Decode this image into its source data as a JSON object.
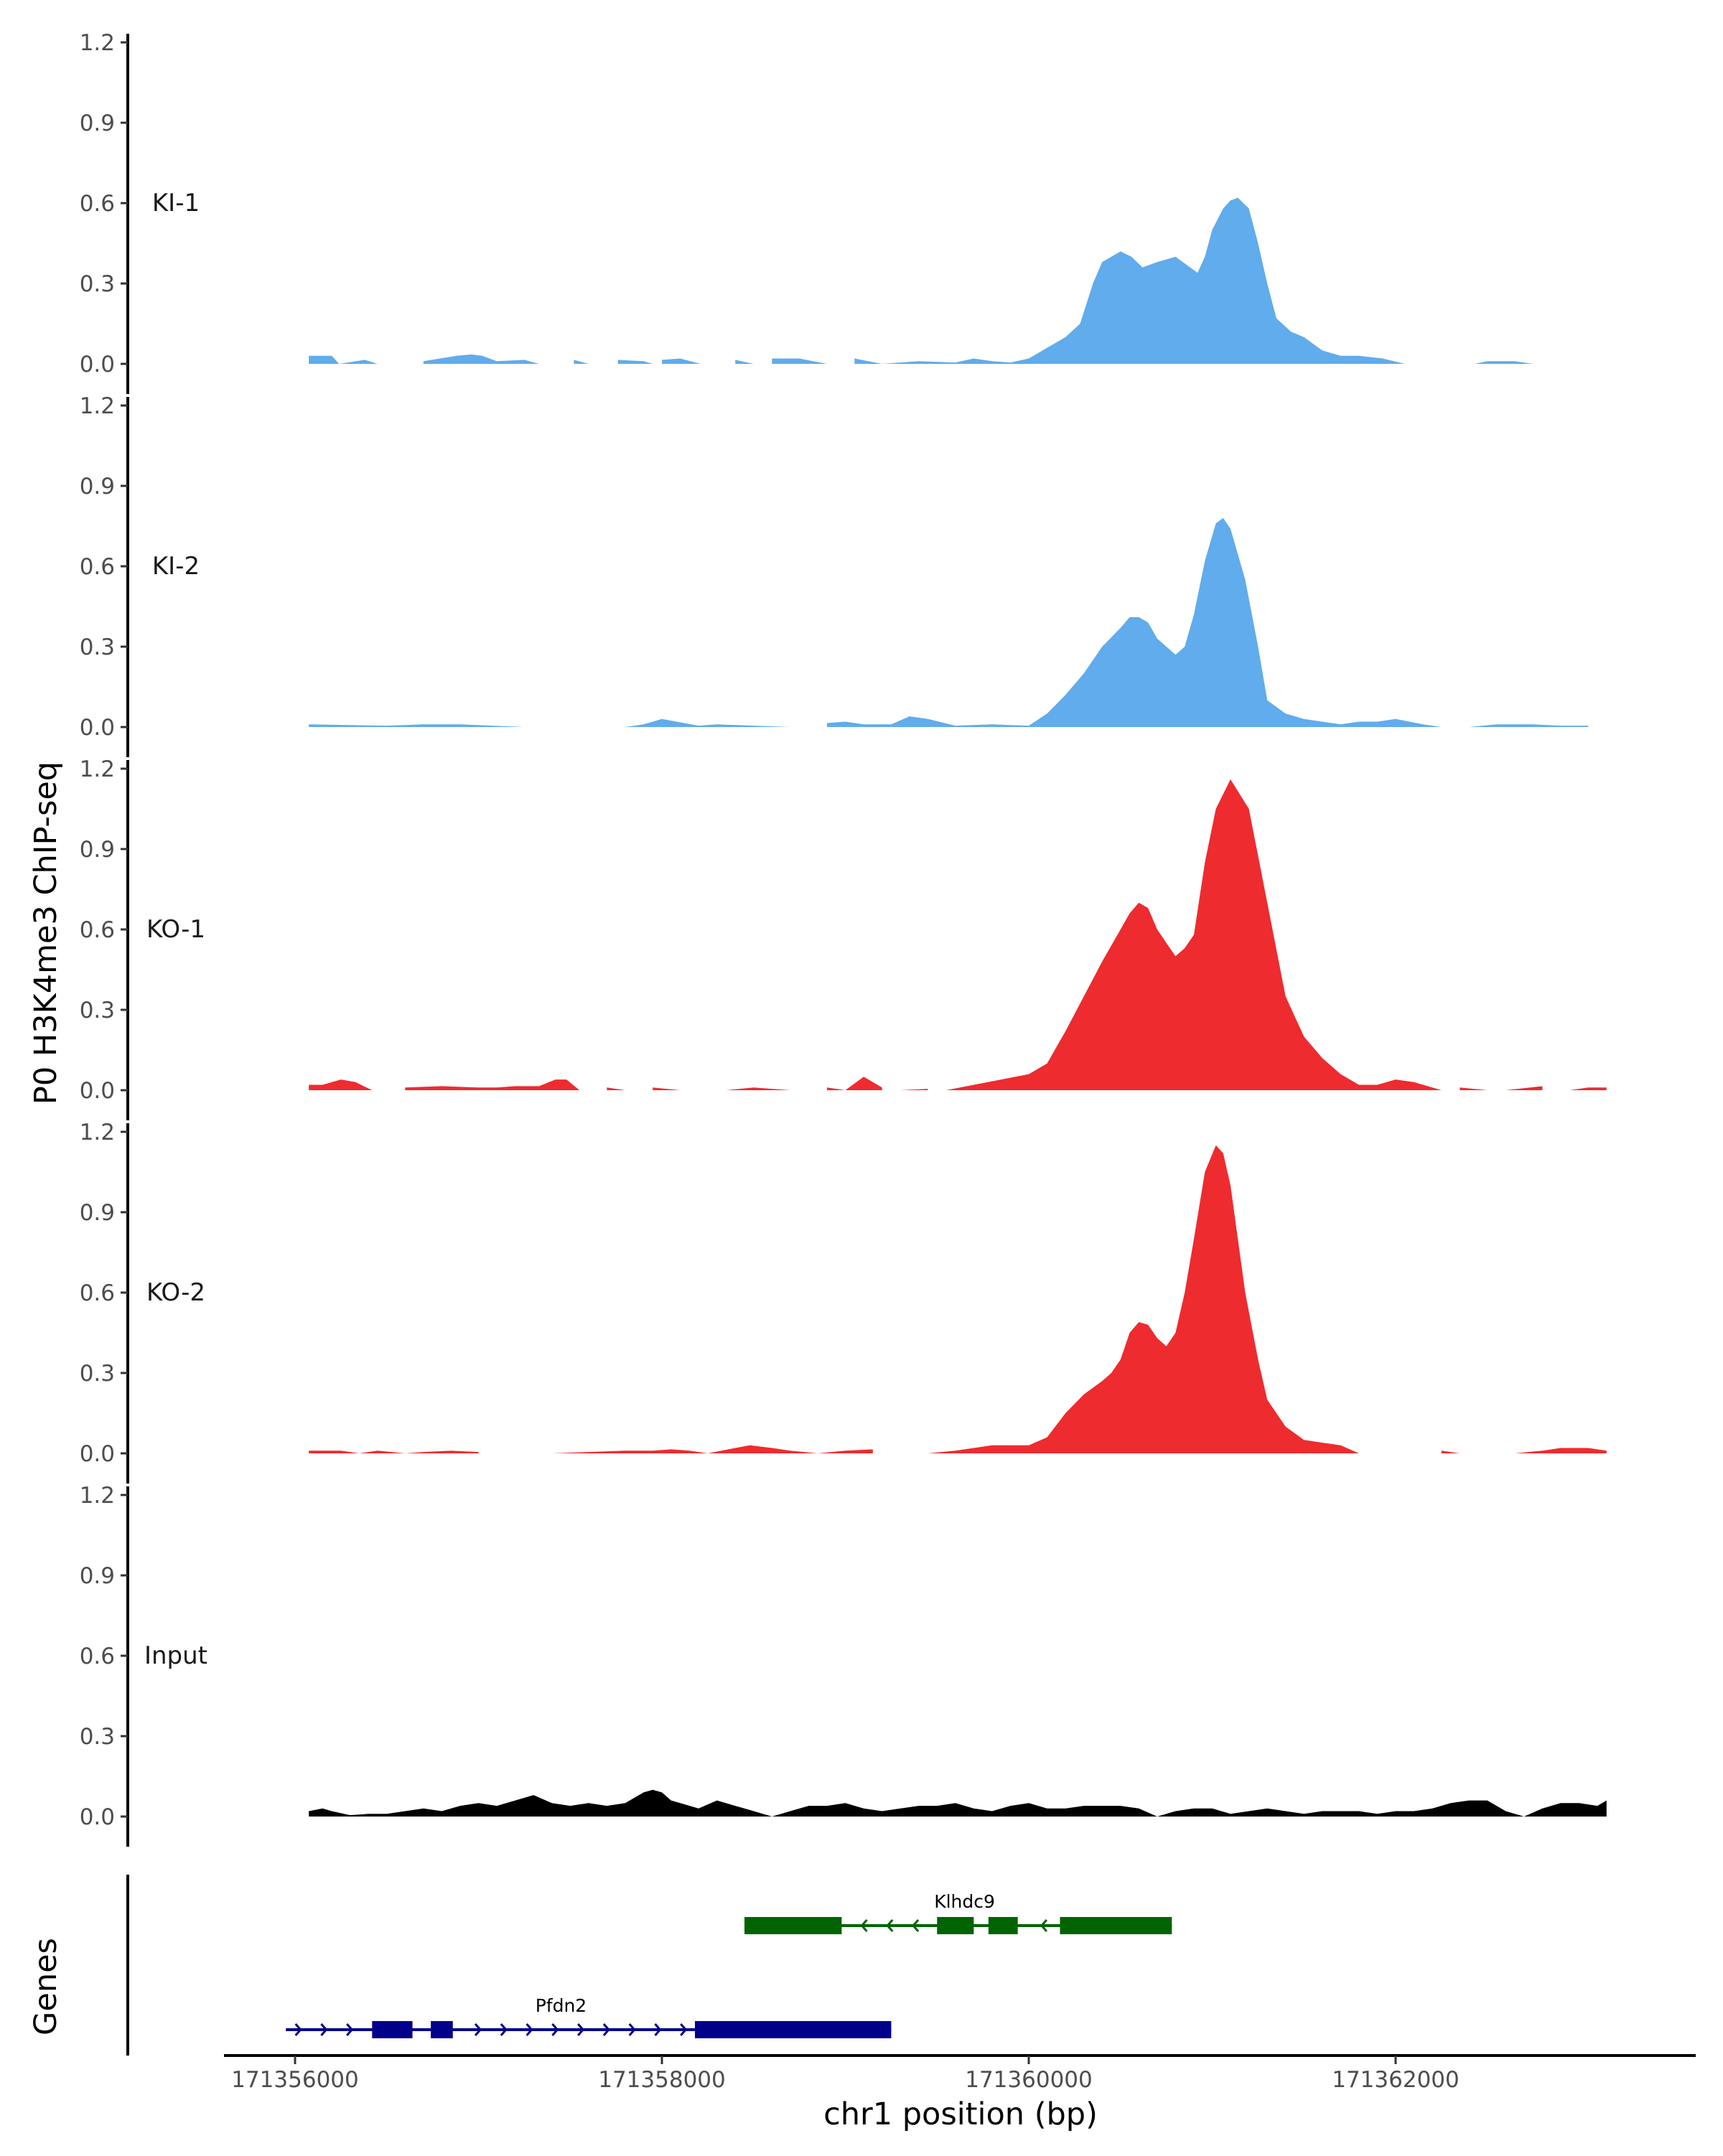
{
  "chart_data": {
    "type": "area",
    "ylabel": "P0 H3K4me3 ChIP-seq",
    "xlabel": "chr1 position (bp)",
    "xlim": [
      171355600,
      171363600
    ],
    "ylim": [
      0,
      1.2
    ],
    "y_ticks": [
      0.0,
      0.3,
      0.6,
      0.9,
      1.2
    ],
    "y_tick_labels": [
      "0.0",
      "0.3",
      "0.6",
      "0.9",
      "1.2"
    ],
    "x_ticks": [
      171356000,
      171358000,
      171360000,
      171362000
    ],
    "x_tick_labels": [
      "171356000",
      "171358000",
      "171360000",
      "171362000"
    ],
    "colors": {
      "KI": "#60acec",
      "KO": "#ee2b2e",
      "Input": "#000000",
      "Klhdc9": "#006400",
      "Pfdn2": "#00008b"
    },
    "series": [
      {
        "name": "KI-1",
        "color": "#60acec",
        "x": [
          171356075,
          171356200,
          171356240,
          171356380,
          171356450,
          171356700,
          171356880,
          171356960,
          171357020,
          171357100,
          171357250,
          171357330,
          171357520,
          171357600,
          171357760,
          171357900,
          171357950,
          171358000,
          171358100,
          171358210,
          171358400,
          171358500,
          171358600,
          171358750,
          171358900,
          171359050,
          171359200,
          171359400,
          171359600,
          171359700,
          171359800,
          171359900,
          171360000,
          171360100,
          171360200,
          171360280,
          171360350,
          171360400,
          171360500,
          171360560,
          171360620,
          171360660,
          171360700,
          171360800,
          171360860,
          171360920,
          171360960,
          171361000,
          171361060,
          171361100,
          171361140,
          171361200,
          171361250,
          171361300,
          171361350,
          171361430,
          171361500,
          171361600,
          171361700,
          171361800,
          171361930,
          171362050,
          171362150,
          171362300,
          171362430,
          171362500,
          171362650,
          171362750
        ],
        "y": [
          0.03,
          0.03,
          0.0,
          0.015,
          0.0,
          0.01,
          0.03,
          0.035,
          0.03,
          0.01,
          0.015,
          0.0,
          0.015,
          0.0,
          0.015,
          0.01,
          0.0,
          0.015,
          0.02,
          0.0,
          0.015,
          0.0,
          0.02,
          0.02,
          0.0,
          0.02,
          0.0,
          0.01,
          0.005,
          0.02,
          0.01,
          0.005,
          0.02,
          0.06,
          0.1,
          0.15,
          0.3,
          0.38,
          0.42,
          0.4,
          0.36,
          0.37,
          0.38,
          0.4,
          0.37,
          0.34,
          0.4,
          0.5,
          0.58,
          0.61,
          0.62,
          0.58,
          0.45,
          0.3,
          0.17,
          0.12,
          0.1,
          0.05,
          0.03,
          0.03,
          0.02,
          0.0,
          0.0,
          0.0,
          0.0,
          0.01,
          0.01,
          0.0
        ],
        "gaps": [
          [
            171356450,
            171356700
          ],
          [
            171357330,
            171357520
          ],
          [
            171357600,
            171357760
          ],
          [
            171357950,
            171358000
          ],
          [
            171358210,
            171358400
          ],
          [
            171358500,
            171358600
          ],
          [
            171358900,
            171359050
          ],
          [
            171362050,
            171362430
          ]
        ]
      },
      {
        "name": "KI-2",
        "color": "#60acec",
        "x": [
          171356075,
          171356500,
          171356700,
          171356900,
          171357250,
          171357800,
          171357900,
          171358000,
          171358080,
          171358200,
          171358300,
          171358500,
          171358700,
          171358900,
          171359000,
          171359100,
          171359250,
          171359350,
          171359450,
          171359600,
          171359800,
          171360000,
          171360100,
          171360200,
          171360300,
          171360400,
          171360500,
          171360550,
          171360600,
          171360650,
          171360700,
          171360800,
          171360850,
          171360900,
          171360960,
          171361020,
          171361060,
          171361100,
          171361180,
          171361250,
          171361300,
          171361400,
          171361500,
          171361600,
          171361700,
          171361800,
          171361900,
          171362000,
          171362150,
          171362250,
          171362400,
          171362550,
          171362750,
          171362900,
          171363050
        ],
        "y": [
          0.01,
          0.005,
          0.01,
          0.01,
          0.0,
          0.0,
          0.01,
          0.03,
          0.02,
          0.005,
          0.01,
          0.005,
          0.0,
          0.015,
          0.02,
          0.01,
          0.01,
          0.04,
          0.03,
          0.005,
          0.01,
          0.005,
          0.05,
          0.12,
          0.2,
          0.3,
          0.37,
          0.41,
          0.41,
          0.39,
          0.33,
          0.27,
          0.3,
          0.42,
          0.62,
          0.76,
          0.78,
          0.74,
          0.55,
          0.3,
          0.1,
          0.05,
          0.03,
          0.02,
          0.01,
          0.02,
          0.02,
          0.03,
          0.01,
          0.0,
          0.0,
          0.01,
          0.01,
          0.005,
          0.005
        ],
        "gaps": [
          [
            171357250,
            171357800
          ],
          [
            171358700,
            171358900
          ],
          [
            171362250,
            171362400
          ]
        ]
      },
      {
        "name": "KO-1",
        "color": "#ee2b2e",
        "x": [
          171356075,
          171356150,
          171356250,
          171356330,
          171356420,
          171356600,
          171356800,
          171357000,
          171357100,
          171357200,
          171357330,
          171357420,
          171357480,
          171357550,
          171357700,
          171357800,
          171357950,
          171358100,
          171358350,
          171358500,
          171358700,
          171358900,
          171359000,
          171359100,
          171359200,
          171359300,
          171359450,
          171359550,
          171359700,
          171359850,
          171360000,
          171360100,
          171360200,
          171360300,
          171360400,
          171360500,
          171360550,
          171360600,
          171360650,
          171360700,
          171360750,
          171360800,
          171360850,
          171360900,
          171360960,
          171361020,
          171361100,
          171361200,
          171361300,
          171361400,
          171361500,
          171361600,
          171361700,
          171361800,
          171361900,
          171362000,
          171362100,
          171362250,
          171362350,
          171362500,
          171362600,
          171362800,
          171362950,
          171363050,
          171363150
        ],
        "y": [
          0.02,
          0.02,
          0.04,
          0.03,
          0.0,
          0.01,
          0.015,
          0.01,
          0.01,
          0.015,
          0.015,
          0.04,
          0.04,
          0.0,
          0.01,
          0.0,
          0.01,
          0.0,
          0.0,
          0.01,
          0.0,
          0.01,
          0.0,
          0.05,
          0.01,
          0.0,
          0.005,
          0.0,
          0.02,
          0.04,
          0.06,
          0.1,
          0.22,
          0.35,
          0.48,
          0.6,
          0.66,
          0.7,
          0.68,
          0.6,
          0.55,
          0.5,
          0.53,
          0.58,
          0.85,
          1.05,
          1.16,
          1.05,
          0.7,
          0.35,
          0.2,
          0.12,
          0.06,
          0.02,
          0.02,
          0.04,
          0.03,
          0.0,
          0.01,
          0.0,
          0.0,
          0.015,
          0.0,
          0.01,
          0.01
        ],
        "gaps": [
          [
            171356420,
            171356600
          ],
          [
            171357550,
            171357700
          ],
          [
            171357800,
            171357950
          ],
          [
            171358100,
            171358350
          ],
          [
            171358700,
            171358900
          ],
          [
            171359200,
            171359300
          ],
          [
            171359450,
            171359550
          ],
          [
            171362250,
            171362350
          ],
          [
            171362500,
            171362600
          ],
          [
            171362800,
            171362950
          ]
        ]
      },
      {
        "name": "KO-2",
        "color": "#ee2b2e",
        "x": [
          171356075,
          171356250,
          171356350,
          171356450,
          171356600,
          171356700,
          171356850,
          171357000,
          171357200,
          171357400,
          171357600,
          171357800,
          171357950,
          171358050,
          171358150,
          171358250,
          171358400,
          171358480,
          171358600,
          171358700,
          171358850,
          171359000,
          171359150,
          171359250,
          171359450,
          171359600,
          171359800,
          171360000,
          171360100,
          171360200,
          171360300,
          171360400,
          171360450,
          171360500,
          171360550,
          171360600,
          171360650,
          171360700,
          171360750,
          171360800,
          171360850,
          171360900,
          171360960,
          171361020,
          171361060,
          171361100,
          171361180,
          171361250,
          171361300,
          171361400,
          171361500,
          171361600,
          171361700,
          171361800,
          171361950,
          171362250,
          171362350,
          171362500,
          171362650,
          171362800,
          171362900,
          171363050,
          171363150
        ],
        "y": [
          0.01,
          0.01,
          0.0,
          0.01,
          0.0,
          0.005,
          0.01,
          0.005,
          0.0,
          0.0,
          0.005,
          0.01,
          0.01,
          0.015,
          0.01,
          0.0,
          0.02,
          0.03,
          0.02,
          0.01,
          0.0,
          0.01,
          0.015,
          0.0,
          0.0,
          0.01,
          0.03,
          0.03,
          0.06,
          0.15,
          0.22,
          0.27,
          0.3,
          0.35,
          0.45,
          0.49,
          0.48,
          0.43,
          0.4,
          0.45,
          0.6,
          0.8,
          1.05,
          1.15,
          1.12,
          1.0,
          0.6,
          0.35,
          0.2,
          0.1,
          0.05,
          0.04,
          0.03,
          0.0,
          0.0,
          0.01,
          0.0,
          0.0,
          0.0,
          0.01,
          0.02,
          0.02,
          0.01
        ],
        "gaps": [
          [
            171357000,
            171357200
          ],
          [
            171357200,
            171357400
          ],
          [
            171359150,
            171359250
          ],
          [
            171359250,
            171359450
          ],
          [
            171361950,
            171362250
          ],
          [
            171362350,
            171362500
          ],
          [
            171362500,
            171362650
          ]
        ]
      },
      {
        "name": "Input",
        "color": "#000000",
        "x": [
          171356075,
          171356150,
          171356200,
          171356300,
          171356400,
          171356500,
          171356600,
          171356700,
          171356800,
          171356900,
          171357000,
          171357100,
          171357200,
          171357300,
          171357400,
          171357500,
          171357600,
          171357700,
          171357800,
          171357900,
          171357950,
          171358000,
          171358050,
          171358100,
          171358200,
          171358300,
          171358400,
          171358450,
          171358500,
          171358600,
          171358700,
          171358800,
          171358900,
          171359000,
          171359100,
          171359200,
          171359300,
          171359400,
          171359500,
          171359600,
          171359700,
          171359800,
          171359900,
          171360000,
          171360100,
          171360200,
          171360300,
          171360400,
          171360500,
          171360600,
          171360700,
          171360800,
          171360900,
          171361000,
          171361100,
          171361200,
          171361300,
          171361400,
          171361500,
          171361600,
          171361700,
          171361800,
          171361900,
          171362000,
          171362100,
          171362200,
          171362300,
          171362400,
          171362500,
          171362600,
          171362700,
          171362800,
          171362900,
          171362950,
          171363000,
          171363100,
          171363150
        ],
        "y": [
          0.02,
          0.03,
          0.02,
          0.005,
          0.01,
          0.01,
          0.02,
          0.03,
          0.02,
          0.04,
          0.05,
          0.04,
          0.06,
          0.08,
          0.05,
          0.04,
          0.05,
          0.04,
          0.05,
          0.09,
          0.1,
          0.09,
          0.06,
          0.05,
          0.03,
          0.06,
          0.04,
          0.03,
          0.02,
          0.0,
          0.02,
          0.04,
          0.04,
          0.05,
          0.03,
          0.02,
          0.03,
          0.04,
          0.04,
          0.05,
          0.03,
          0.02,
          0.04,
          0.05,
          0.03,
          0.03,
          0.04,
          0.04,
          0.04,
          0.03,
          0.0,
          0.02,
          0.03,
          0.03,
          0.01,
          0.02,
          0.03,
          0.02,
          0.01,
          0.02,
          0.02,
          0.02,
          0.01,
          0.02,
          0.02,
          0.03,
          0.05,
          0.06,
          0.06,
          0.02,
          0.0,
          0.03,
          0.05,
          0.05,
          0.05,
          0.04,
          0.06
        ],
        "gaps": []
      }
    ],
    "gene_track": {
      "ylabel": "Genes",
      "genes": [
        {
          "name": "Klhdc9",
          "color": "#006400",
          "strand": "-",
          "start": 171358450,
          "end": 171360780,
          "exons": [
            [
              171358450,
              171358980
            ],
            [
              171359500,
              171359700
            ],
            [
              171359780,
              171359940
            ],
            [
              171360170,
              171360780
            ]
          ]
        },
        {
          "name": "Pfdn2",
          "color": "#00008b",
          "strand": "+",
          "start": 171355950,
          "end": 171359250,
          "exons": [
            [
              171356420,
              171356640
            ],
            [
              171356740,
              171356860
            ],
            [
              171358180,
              171359250
            ]
          ]
        }
      ]
    }
  }
}
